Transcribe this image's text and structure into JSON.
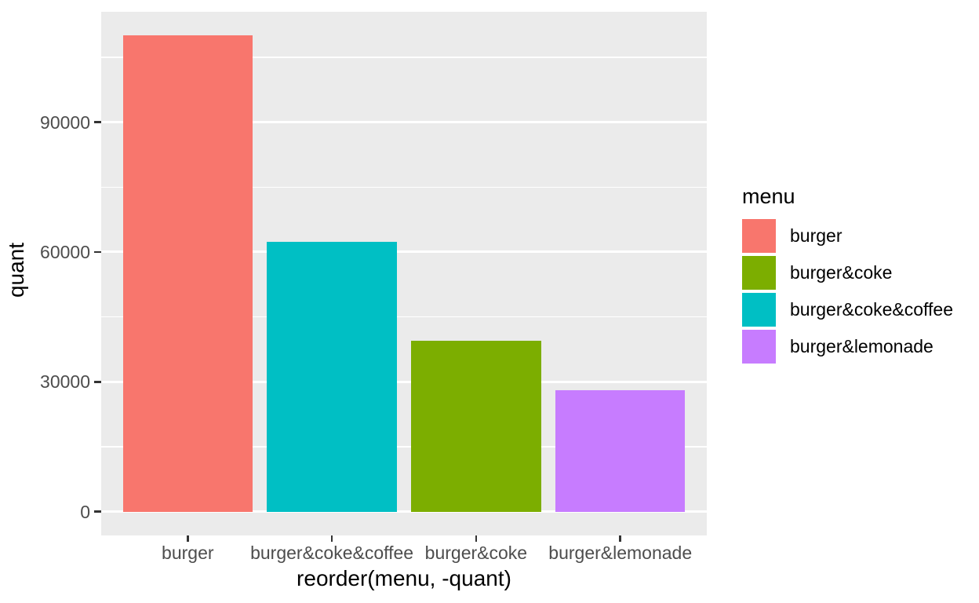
{
  "chart_data": {
    "type": "bar",
    "title": "",
    "xlabel": "reorder(menu, -quant)",
    "ylabel": "quant",
    "categories": [
      "burger",
      "burger&coke&coffee",
      "burger&coke",
      "burger&lemonade"
    ],
    "values": [
      110000,
      62300,
      39400,
      28000
    ],
    "bar_colors": [
      "#F8766D",
      "#00BFC4",
      "#7CAE00",
      "#C77CFF"
    ],
    "ylim": [
      -5500,
      115500
    ],
    "yticks": [
      0,
      30000,
      60000,
      90000
    ],
    "ytick_labels": [
      "0",
      "30000",
      "60000",
      "90000"
    ],
    "minor_gridlines": [
      15000,
      45000,
      75000,
      105000
    ],
    "grid": "on",
    "panel_background": "#EBEBEB",
    "gridline_color": "#FFFFFF",
    "tick_mark_color": "#333333",
    "axis_text_color": "#4D4D4D",
    "title_text_color": "#000000",
    "bar_width_fraction": 0.9,
    "legend": {
      "title": "menu",
      "position": "right",
      "entries": [
        {
          "label": "burger",
          "color": "#F8766D"
        },
        {
          "label": "burger&coke",
          "color": "#7CAE00"
        },
        {
          "label": "burger&coke&coffee",
          "color": "#00BFC4"
        },
        {
          "label": "burger&lemonade",
          "color": "#C77CFF"
        }
      ]
    }
  }
}
